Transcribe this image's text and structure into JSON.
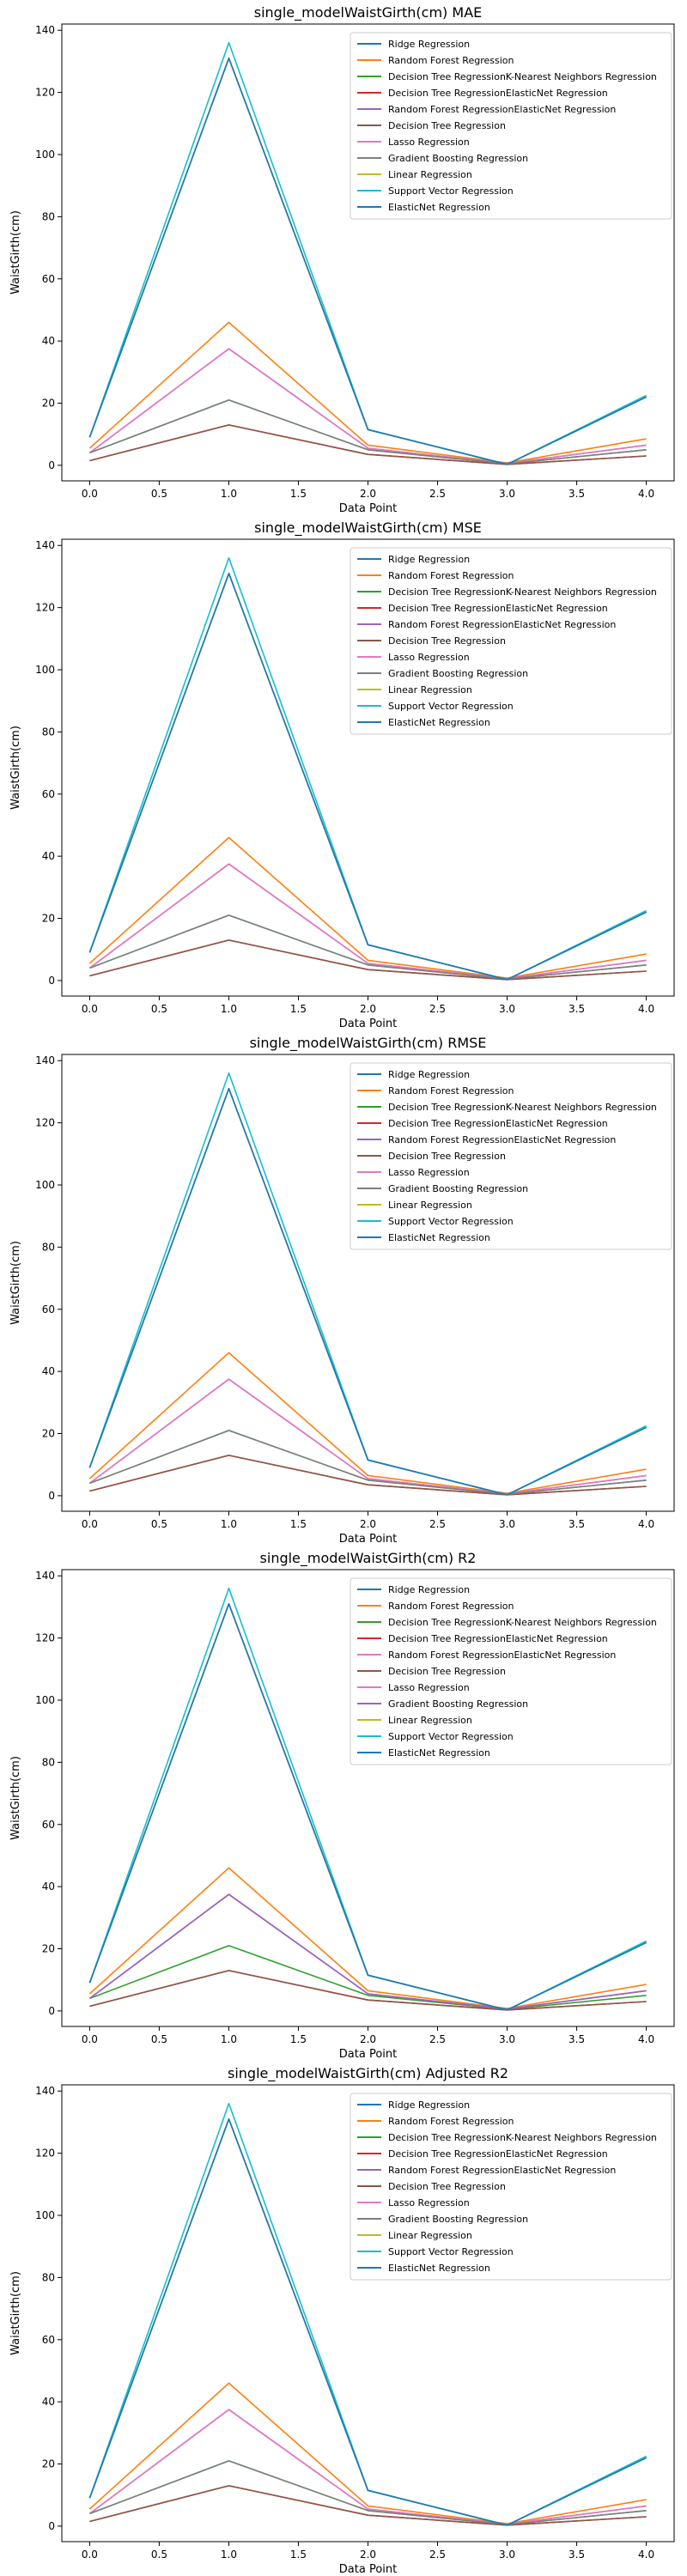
{
  "colors": {
    "C0": "#1f77b4",
    "C1": "#ff7f0e",
    "C2": "#2ca02c",
    "C3": "#d62728",
    "C4": "#9467bd",
    "C5": "#8c564b",
    "C6": "#e377c2",
    "C7": "#7f7f7f",
    "C8": "#bcbd22",
    "C9": "#17becf"
  },
  "chart_data": [
    {
      "type": "line",
      "title": "single_modelWaistGirth(cm) MAE",
      "xlabel": "Data Point",
      "ylabel": "WaistGirth(cm)",
      "x": [
        0,
        1,
        2,
        3,
        4
      ],
      "xlim": [
        -0.2,
        4.2
      ],
      "ylim": [
        -5,
        142
      ],
      "xticks": [
        "0.0",
        "0.5",
        "1.0",
        "1.5",
        "2.0",
        "2.5",
        "3.0",
        "3.5",
        "4.0"
      ],
      "yticks": [
        "0",
        "20",
        "40",
        "60",
        "80",
        "100",
        "120",
        "140"
      ],
      "legend_position": "upper right",
      "grid": false,
      "series": [
        {
          "name": "Ridge Regression",
          "color": "#1f77b4",
          "values": [
            9.0,
            131.0,
            11.5,
            0.3,
            22.0
          ]
        },
        {
          "name": "Random Forest Regression",
          "color": "#ff7f0e",
          "values": [
            5.5,
            46.0,
            6.5,
            0.8,
            8.5
          ]
        },
        {
          "name": "Decision Tree RegressionK-Nearest Neighbors Regression",
          "color": "#2ca02c",
          "values": [
            4.0,
            21.0,
            5.0,
            0.5,
            5.0
          ]
        },
        {
          "name": "Decision Tree RegressionElasticNet Regression",
          "color": "#d62728",
          "values": [
            1.5,
            13.0,
            3.5,
            0.3,
            3.0
          ]
        },
        {
          "name": "Random Forest RegressionElasticNet Regression",
          "color": "#9467bd",
          "values": [
            4.0,
            37.5,
            5.5,
            0.6,
            6.5
          ]
        },
        {
          "name": "Decision Tree Regression",
          "color": "#8c564b",
          "values": [
            1.5,
            13.0,
            3.5,
            0.3,
            3.0
          ]
        },
        {
          "name": "Lasso Regression",
          "color": "#e377c2",
          "values": [
            4.0,
            37.5,
            5.5,
            0.6,
            6.5
          ]
        },
        {
          "name": "Gradient Boosting Regression",
          "color": "#7f7f7f",
          "values": [
            4.0,
            21.0,
            5.0,
            0.5,
            5.0
          ]
        },
        {
          "name": "Linear Regression",
          "color": "#bcbd22",
          "values": [
            9.0,
            131.0,
            11.5,
            0.3,
            22.0
          ]
        },
        {
          "name": "Support Vector Regression",
          "color": "#17becf",
          "values": [
            9.0,
            136.0,
            11.5,
            0.3,
            22.5
          ]
        },
        {
          "name": "ElasticNet Regression",
          "color": "#1f77b4",
          "values": [
            9.0,
            131.0,
            11.5,
            0.3,
            22.0
          ]
        }
      ]
    },
    {
      "type": "line",
      "title": "single_modelWaistGirth(cm) MSE",
      "xlabel": "Data Point",
      "ylabel": "WaistGirth(cm)",
      "x": [
        0,
        1,
        2,
        3,
        4
      ],
      "xlim": [
        -0.2,
        4.2
      ],
      "ylim": [
        -5,
        142
      ],
      "xticks": [
        "0.0",
        "0.5",
        "1.0",
        "1.5",
        "2.0",
        "2.5",
        "3.0",
        "3.5",
        "4.0"
      ],
      "yticks": [
        "0",
        "20",
        "40",
        "60",
        "80",
        "100",
        "120",
        "140"
      ],
      "legend_position": "upper right",
      "grid": false,
      "series": [
        {
          "name": "Ridge Regression",
          "color": "#1f77b4",
          "values": [
            9.0,
            131.0,
            11.5,
            0.3,
            22.0
          ]
        },
        {
          "name": "Random Forest Regression",
          "color": "#ff7f0e",
          "values": [
            5.5,
            46.0,
            6.5,
            0.8,
            8.5
          ]
        },
        {
          "name": "Decision Tree RegressionK-Nearest Neighbors Regression",
          "color": "#2ca02c",
          "values": [
            4.0,
            21.0,
            5.0,
            0.5,
            5.0
          ]
        },
        {
          "name": "Decision Tree RegressionElasticNet Regression",
          "color": "#d62728",
          "values": [
            1.5,
            13.0,
            3.5,
            0.3,
            3.0
          ]
        },
        {
          "name": "Random Forest RegressionElasticNet Regression",
          "color": "#9467bd",
          "values": [
            4.0,
            37.5,
            5.5,
            0.6,
            6.5
          ]
        },
        {
          "name": "Decision Tree Regression",
          "color": "#8c564b",
          "values": [
            1.5,
            13.0,
            3.5,
            0.3,
            3.0
          ]
        },
        {
          "name": "Lasso Regression",
          "color": "#e377c2",
          "values": [
            4.0,
            37.5,
            5.5,
            0.6,
            6.5
          ]
        },
        {
          "name": "Gradient Boosting Regression",
          "color": "#7f7f7f",
          "values": [
            4.0,
            21.0,
            5.0,
            0.5,
            5.0
          ]
        },
        {
          "name": "Linear Regression",
          "color": "#bcbd22",
          "values": [
            9.0,
            131.0,
            11.5,
            0.3,
            22.0
          ]
        },
        {
          "name": "Support Vector Regression",
          "color": "#17becf",
          "values": [
            9.0,
            136.0,
            11.5,
            0.3,
            22.5
          ]
        },
        {
          "name": "ElasticNet Regression",
          "color": "#1f77b4",
          "values": [
            9.0,
            131.0,
            11.5,
            0.3,
            22.0
          ]
        }
      ]
    },
    {
      "type": "line",
      "title": "single_modelWaistGirth(cm) RMSE",
      "xlabel": "Data Point",
      "ylabel": "WaistGirth(cm)",
      "x": [
        0,
        1,
        2,
        3,
        4
      ],
      "xlim": [
        -0.2,
        4.2
      ],
      "ylim": [
        -5,
        142
      ],
      "xticks": [
        "0.0",
        "0.5",
        "1.0",
        "1.5",
        "2.0",
        "2.5",
        "3.0",
        "3.5",
        "4.0"
      ],
      "yticks": [
        "0",
        "20",
        "40",
        "60",
        "80",
        "100",
        "120",
        "140"
      ],
      "legend_position": "upper right",
      "grid": false,
      "series": [
        {
          "name": "Ridge Regression",
          "color": "#1f77b4",
          "values": [
            9.0,
            131.0,
            11.5,
            0.3,
            22.0
          ]
        },
        {
          "name": "Random Forest Regression",
          "color": "#ff7f0e",
          "values": [
            5.5,
            46.0,
            6.5,
            0.8,
            8.5
          ]
        },
        {
          "name": "Decision Tree RegressionK-Nearest Neighbors Regression",
          "color": "#2ca02c",
          "values": [
            4.0,
            21.0,
            5.0,
            0.5,
            5.0
          ]
        },
        {
          "name": "Decision Tree RegressionElasticNet Regression",
          "color": "#d62728",
          "values": [
            1.5,
            13.0,
            3.5,
            0.3,
            3.0
          ]
        },
        {
          "name": "Random Forest RegressionElasticNet Regression",
          "color": "#9467bd",
          "values": [
            4.0,
            37.5,
            5.5,
            0.6,
            6.5
          ]
        },
        {
          "name": "Decision Tree Regression",
          "color": "#8c564b",
          "values": [
            1.5,
            13.0,
            3.5,
            0.3,
            3.0
          ]
        },
        {
          "name": "Lasso Regression",
          "color": "#e377c2",
          "values": [
            4.0,
            37.5,
            5.5,
            0.6,
            6.5
          ]
        },
        {
          "name": "Gradient Boosting Regression",
          "color": "#7f7f7f",
          "values": [
            4.0,
            21.0,
            5.0,
            0.5,
            5.0
          ]
        },
        {
          "name": "Linear Regression",
          "color": "#bcbd22",
          "values": [
            9.0,
            131.0,
            11.5,
            0.3,
            22.0
          ]
        },
        {
          "name": "Support Vector Regression",
          "color": "#17becf",
          "values": [
            9.0,
            136.0,
            11.5,
            0.3,
            22.5
          ]
        },
        {
          "name": "ElasticNet Regression",
          "color": "#1f77b4",
          "values": [
            9.0,
            131.0,
            11.5,
            0.3,
            22.0
          ]
        }
      ]
    },
    {
      "type": "line",
      "title": "single_modelWaistGirth(cm) R2",
      "xlabel": "Data Point",
      "ylabel": "WaistGirth(cm)",
      "x": [
        0,
        1,
        2,
        3,
        4
      ],
      "xlim": [
        -0.2,
        4.2
      ],
      "ylim": [
        -5,
        142
      ],
      "xticks": [
        "0.0",
        "0.5",
        "1.0",
        "1.5",
        "2.0",
        "2.5",
        "3.0",
        "3.5",
        "4.0"
      ],
      "yticks": [
        "0",
        "20",
        "40",
        "60",
        "80",
        "100",
        "120",
        "140"
      ],
      "legend_position": "upper right",
      "grid": false,
      "series": [
        {
          "name": "Ridge Regression",
          "color": "#1f77b4",
          "values": [
            9.0,
            131.0,
            11.5,
            0.3,
            22.0
          ]
        },
        {
          "name": "Random Forest Regression",
          "color": "#ff7f0e",
          "values": [
            5.5,
            46.0,
            6.5,
            0.8,
            8.5
          ]
        },
        {
          "name": "Decision Tree RegressionK-Nearest Neighbors Regression",
          "color": "#2ca02c",
          "values": [
            4.0,
            21.0,
            5.0,
            0.5,
            5.0
          ]
        },
        {
          "name": "Decision Tree RegressionElasticNet Regression",
          "color": "#d62728",
          "values": [
            1.5,
            13.0,
            3.5,
            0.3,
            3.0
          ]
        },
        {
          "name": "Random Forest RegressionElasticNet Regression",
          "color": "#e377c2",
          "values": [
            4.0,
            37.5,
            5.5,
            0.6,
            6.5
          ]
        },
        {
          "name": "Decision Tree Regression",
          "color": "#8c564b",
          "values": [
            1.5,
            13.0,
            3.5,
            0.3,
            3.0
          ]
        },
        {
          "name": "Lasso Regression",
          "color": "#e377c2",
          "values": [
            4.0,
            37.5,
            5.5,
            0.6,
            6.5
          ]
        },
        {
          "name": "Gradient Boosting Regression",
          "color": "#9467bd",
          "values": [
            4.0,
            37.5,
            5.5,
            0.6,
            6.5
          ]
        },
        {
          "name": "Linear Regression",
          "color": "#bcbd22",
          "values": [
            9.0,
            131.0,
            11.5,
            0.3,
            22.0
          ]
        },
        {
          "name": "Support Vector Regression",
          "color": "#17becf",
          "values": [
            9.0,
            136.0,
            11.5,
            0.3,
            22.5
          ]
        },
        {
          "name": "ElasticNet Regression",
          "color": "#1f77b4",
          "values": [
            9.0,
            131.0,
            11.5,
            0.3,
            22.0
          ]
        }
      ]
    },
    {
      "type": "line",
      "title": "single_modelWaistGirth(cm) Adjusted R2",
      "xlabel": "Data Point",
      "ylabel": "WaistGirth(cm)",
      "x": [
        0,
        1,
        2,
        3,
        4
      ],
      "xlim": [
        -0.2,
        4.2
      ],
      "ylim": [
        -5,
        142
      ],
      "xticks": [
        "0.0",
        "0.5",
        "1.0",
        "1.5",
        "2.0",
        "2.5",
        "3.0",
        "3.5",
        "4.0"
      ],
      "yticks": [
        "0",
        "20",
        "40",
        "60",
        "80",
        "100",
        "120",
        "140"
      ],
      "legend_position": "upper right",
      "grid": false,
      "series": [
        {
          "name": "Ridge Regression",
          "color": "#1f77b4",
          "values": [
            9.0,
            131.0,
            11.5,
            0.3,
            22.0
          ]
        },
        {
          "name": "Random Forest Regression",
          "color": "#ff7f0e",
          "values": [
            5.5,
            46.0,
            6.5,
            0.8,
            8.5
          ]
        },
        {
          "name": "Decision Tree RegressionK-Nearest Neighbors Regression",
          "color": "#2ca02c",
          "values": [
            4.0,
            21.0,
            5.0,
            0.5,
            5.0
          ]
        },
        {
          "name": "Decision Tree RegressionElasticNet Regression",
          "color": "#d62728",
          "values": [
            1.5,
            13.0,
            3.5,
            0.3,
            3.0
          ]
        },
        {
          "name": "Random Forest RegressionElasticNet Regression",
          "color": "#9467bd",
          "values": [
            4.0,
            37.5,
            5.5,
            0.6,
            6.5
          ]
        },
        {
          "name": "Decision Tree Regression",
          "color": "#8c564b",
          "values": [
            1.5,
            13.0,
            3.5,
            0.3,
            3.0
          ]
        },
        {
          "name": "Lasso Regression",
          "color": "#e377c2",
          "values": [
            4.0,
            37.5,
            5.5,
            0.6,
            6.5
          ]
        },
        {
          "name": "Gradient Boosting Regression",
          "color": "#7f7f7f",
          "values": [
            4.0,
            21.0,
            5.0,
            0.5,
            5.0
          ]
        },
        {
          "name": "Linear Regression",
          "color": "#bcbd22",
          "values": [
            9.0,
            131.0,
            11.5,
            0.3,
            22.0
          ]
        },
        {
          "name": "Support Vector Regression",
          "color": "#17becf",
          "values": [
            9.0,
            136.0,
            11.5,
            0.3,
            22.5
          ]
        },
        {
          "name": "ElasticNet Regression",
          "color": "#1f77b4",
          "values": [
            9.0,
            131.0,
            11.5,
            0.3,
            22.0
          ]
        }
      ]
    }
  ]
}
